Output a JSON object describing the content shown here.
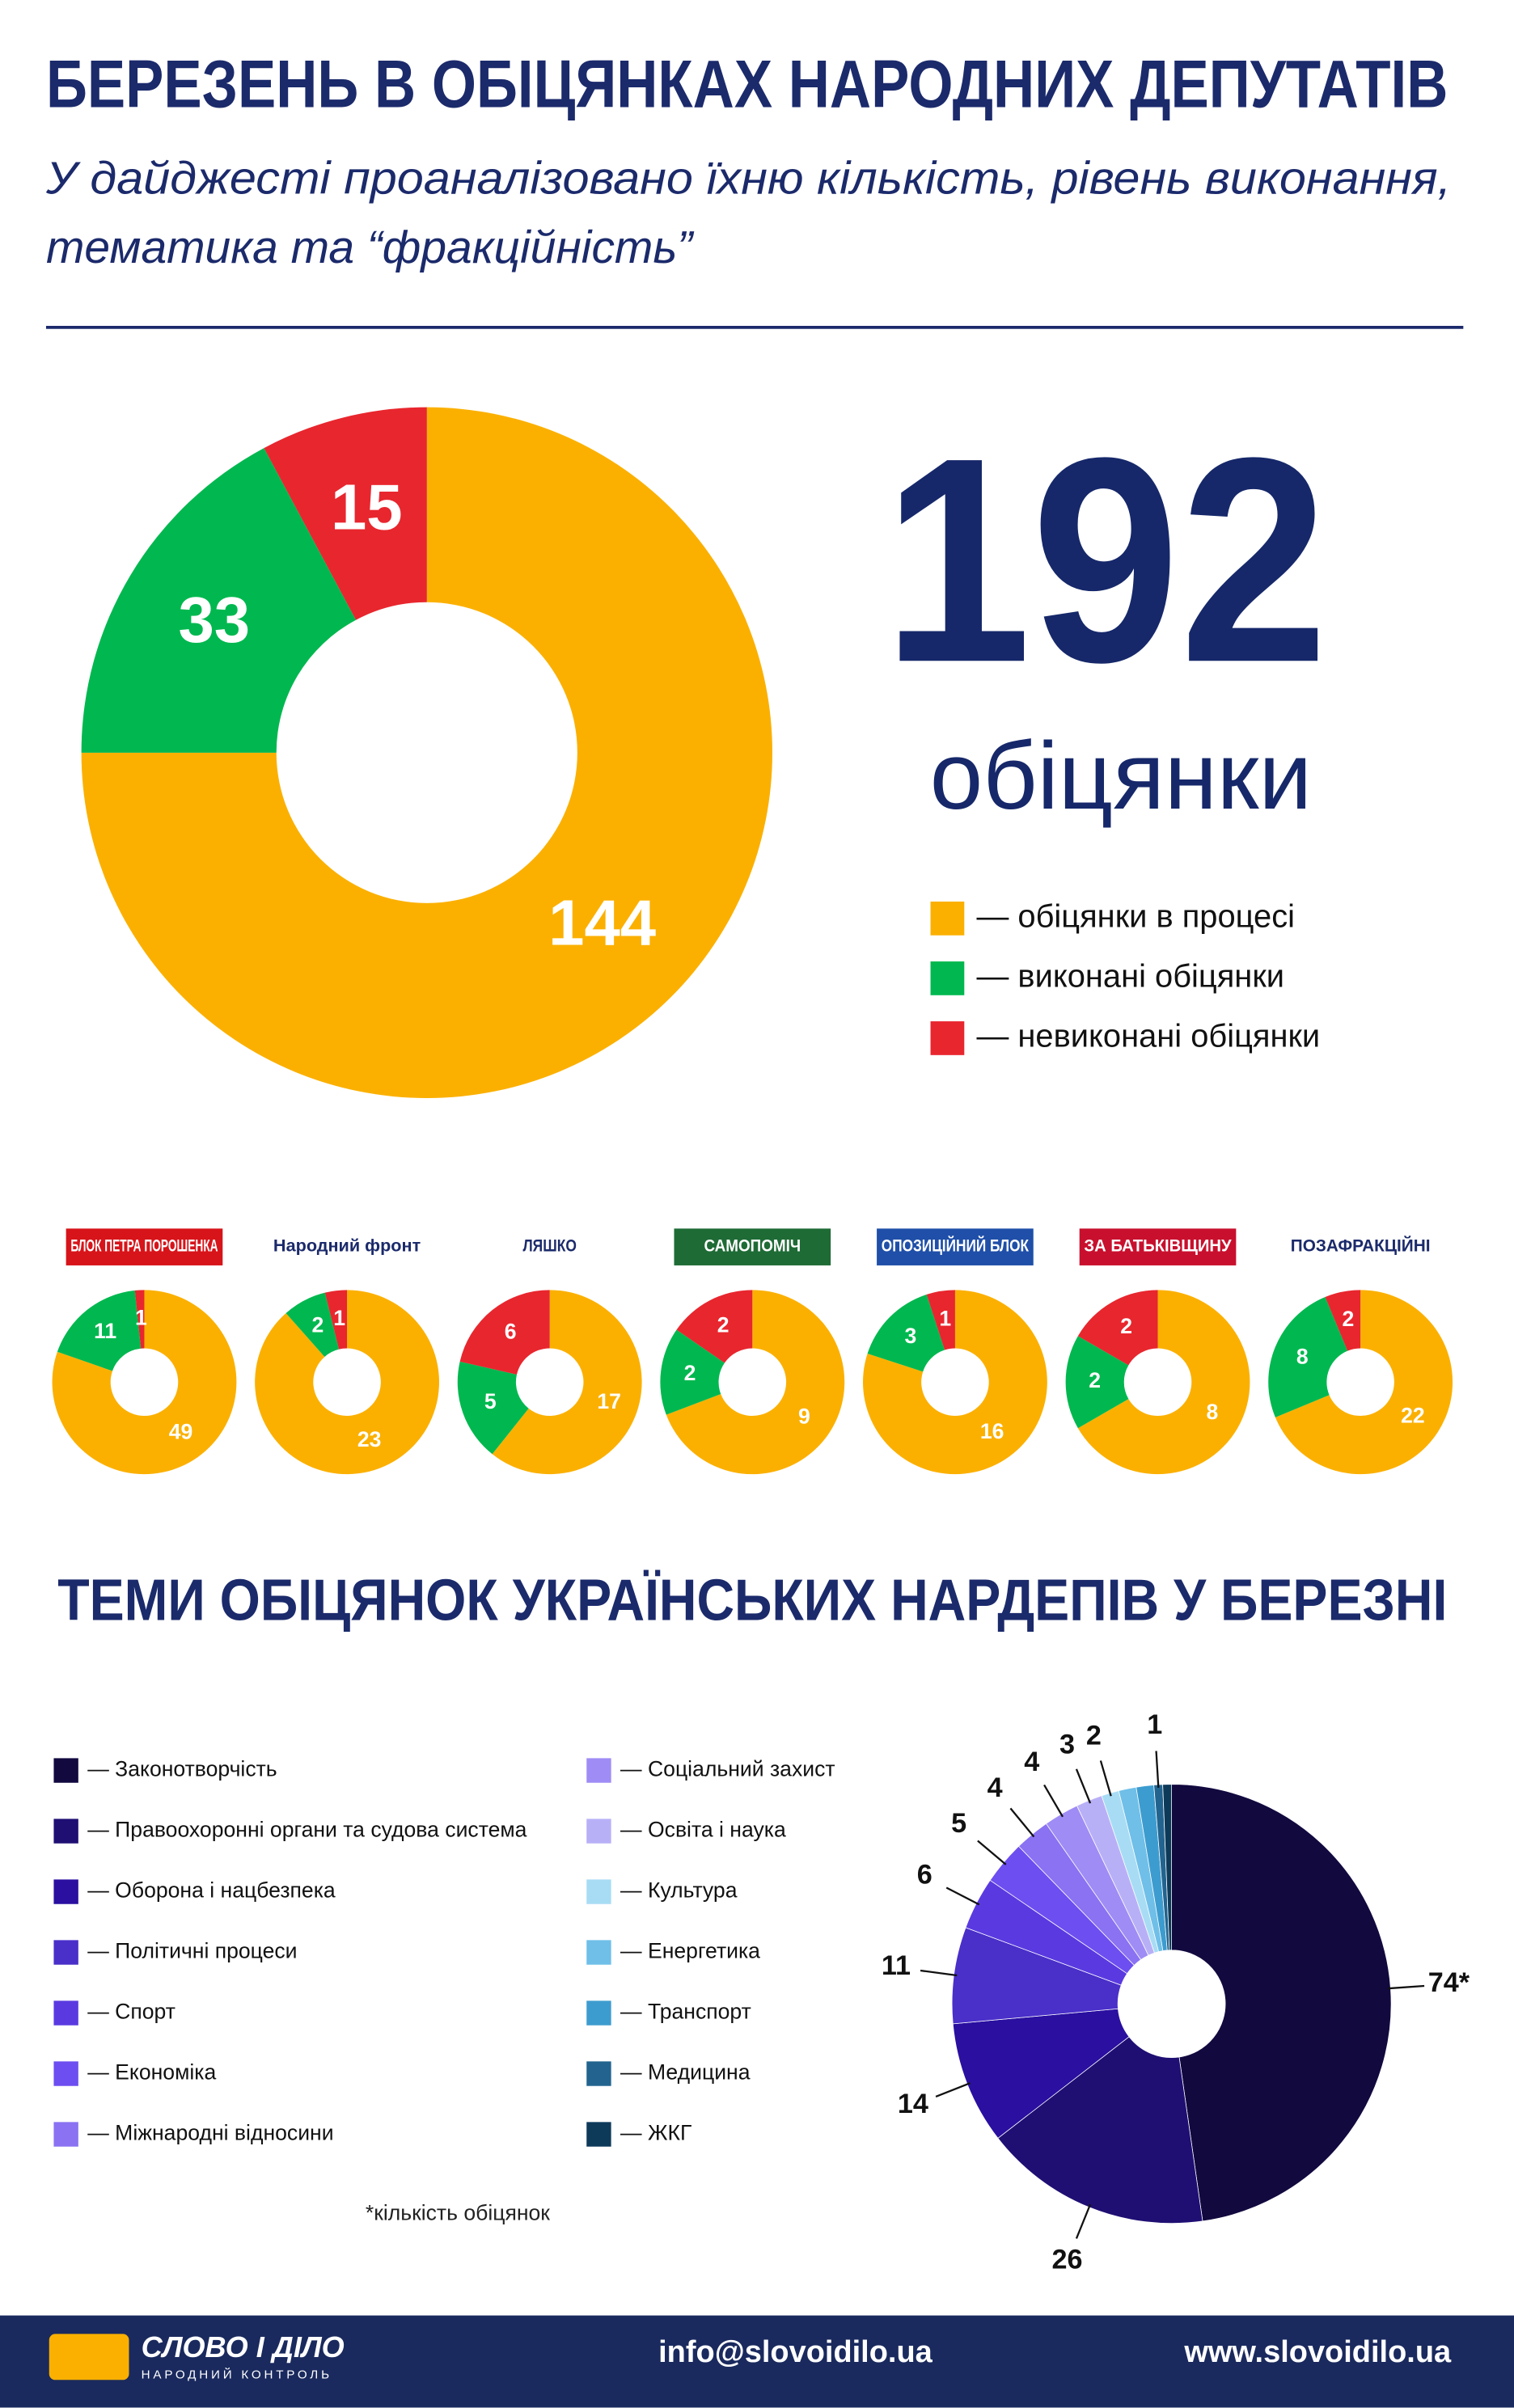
{
  "title": "БЕРЕЗЕНЬ В ОБІЦЯНКАХ НАРОДНИХ ДЕПУТАТІВ",
  "subtitle": [
    "У дайджесті проаналізовано їхню кількість, рівень виконання,",
    "тематика та “фракційність”"
  ],
  "chart_data": [
    {
      "type": "donut",
      "total": 192,
      "total_label": "обіцянки",
      "categories": [
        "— обіцянки в процесі",
        "— виконані обіцянки",
        "— невиконані обіцянки"
      ],
      "values": [
        144,
        33,
        15
      ],
      "colors": [
        "#fbb000",
        "#00b84f",
        "#e8262e"
      ]
    },
    {
      "type": "donut",
      "title": "БЛОК ПЕТРА ПОРОШЕНКА",
      "logo_color": "#d7141a",
      "values": [
        49,
        11,
        1
      ],
      "colors": [
        "#fbb000",
        "#00b84f",
        "#e8262e"
      ]
    },
    {
      "type": "donut",
      "title": "Народний фронт",
      "logo_color": "#ffffff",
      "values": [
        23,
        2,
        1
      ],
      "colors": [
        "#fbb000",
        "#00b84f",
        "#e8262e"
      ]
    },
    {
      "type": "donut",
      "title": "ЛЯШКО",
      "logo_color": "#ffffff",
      "values": [
        17,
        5,
        6
      ],
      "colors": [
        "#fbb000",
        "#00b84f",
        "#e8262e"
      ]
    },
    {
      "type": "donut",
      "title": "САМОПОМІЧ",
      "logo_color": "#1e6b35",
      "values": [
        9,
        2,
        2
      ],
      "colors": [
        "#fbb000",
        "#00b84f",
        "#e8262e"
      ]
    },
    {
      "type": "donut",
      "title": "ОПОЗИЦІЙНИЙ БЛОК",
      "logo_color": "#1f4fa8",
      "values": [
        16,
        3,
        1
      ],
      "colors": [
        "#fbb000",
        "#00b84f",
        "#e8262e"
      ]
    },
    {
      "type": "donut",
      "title": "ЗА БАТЬКІВЩИНУ",
      "logo_color": "#c8102e",
      "values": [
        8,
        2,
        2
      ],
      "colors": [
        "#fbb000",
        "#00b84f",
        "#e8262e"
      ]
    },
    {
      "type": "donut",
      "title": "ПОЗАФРАКЦІЙНІ",
      "logo_color": "#ffffff",
      "values": [
        22,
        8,
        2
      ],
      "colors": [
        "#fbb000",
        "#00b84f",
        "#e8262e"
      ]
    },
    {
      "type": "pie",
      "title": "ТЕМИ ОБІЦЯНОК УКРАЇНСЬКИХ НАРДЕПІВ У БЕРЕЗНІ",
      "categories": [
        "— Законотворчість",
        "— Правоохоронні органи та судова система",
        "— Оборона і нацбезпека",
        "— Політичні процеси",
        "— Спорт",
        "— Економіка",
        "— Міжнародні відносини",
        "— Соціальний захист",
        "— Освіта і наука",
        "— Культура",
        "— Енергетика",
        "— Транспорт",
        "— Медицина",
        "— ЖКГ"
      ],
      "values": [
        74,
        26,
        14,
        11,
        6,
        5,
        4,
        4,
        3,
        2,
        2,
        2,
        1,
        1
      ],
      "value_labels": [
        "74*",
        "26",
        "14",
        "11",
        "6",
        "5",
        "4",
        "4",
        "3",
        "2",
        null,
        null,
        "1",
        null
      ],
      "colors": [
        "#12093f",
        "#1f0f73",
        "#2a0fa0",
        "#4a2fc9",
        "#5a3ae0",
        "#6d4ef0",
        "#8a72f2",
        "#a08cf5",
        "#b8b0f7",
        "#a8dcf5",
        "#6fbfe8",
        "#3d9ccf",
        "#22648f",
        "#0e3a5a"
      ],
      "note": "*кількість обіцянок"
    }
  ],
  "footer": {
    "brand": "СЛОВО І ДІЛО",
    "tagline": "НАРОДНИЙ КОНТРОЛЬ",
    "email": "info@slovoidilo.ua",
    "site": "www.slovoidilo.ua"
  }
}
